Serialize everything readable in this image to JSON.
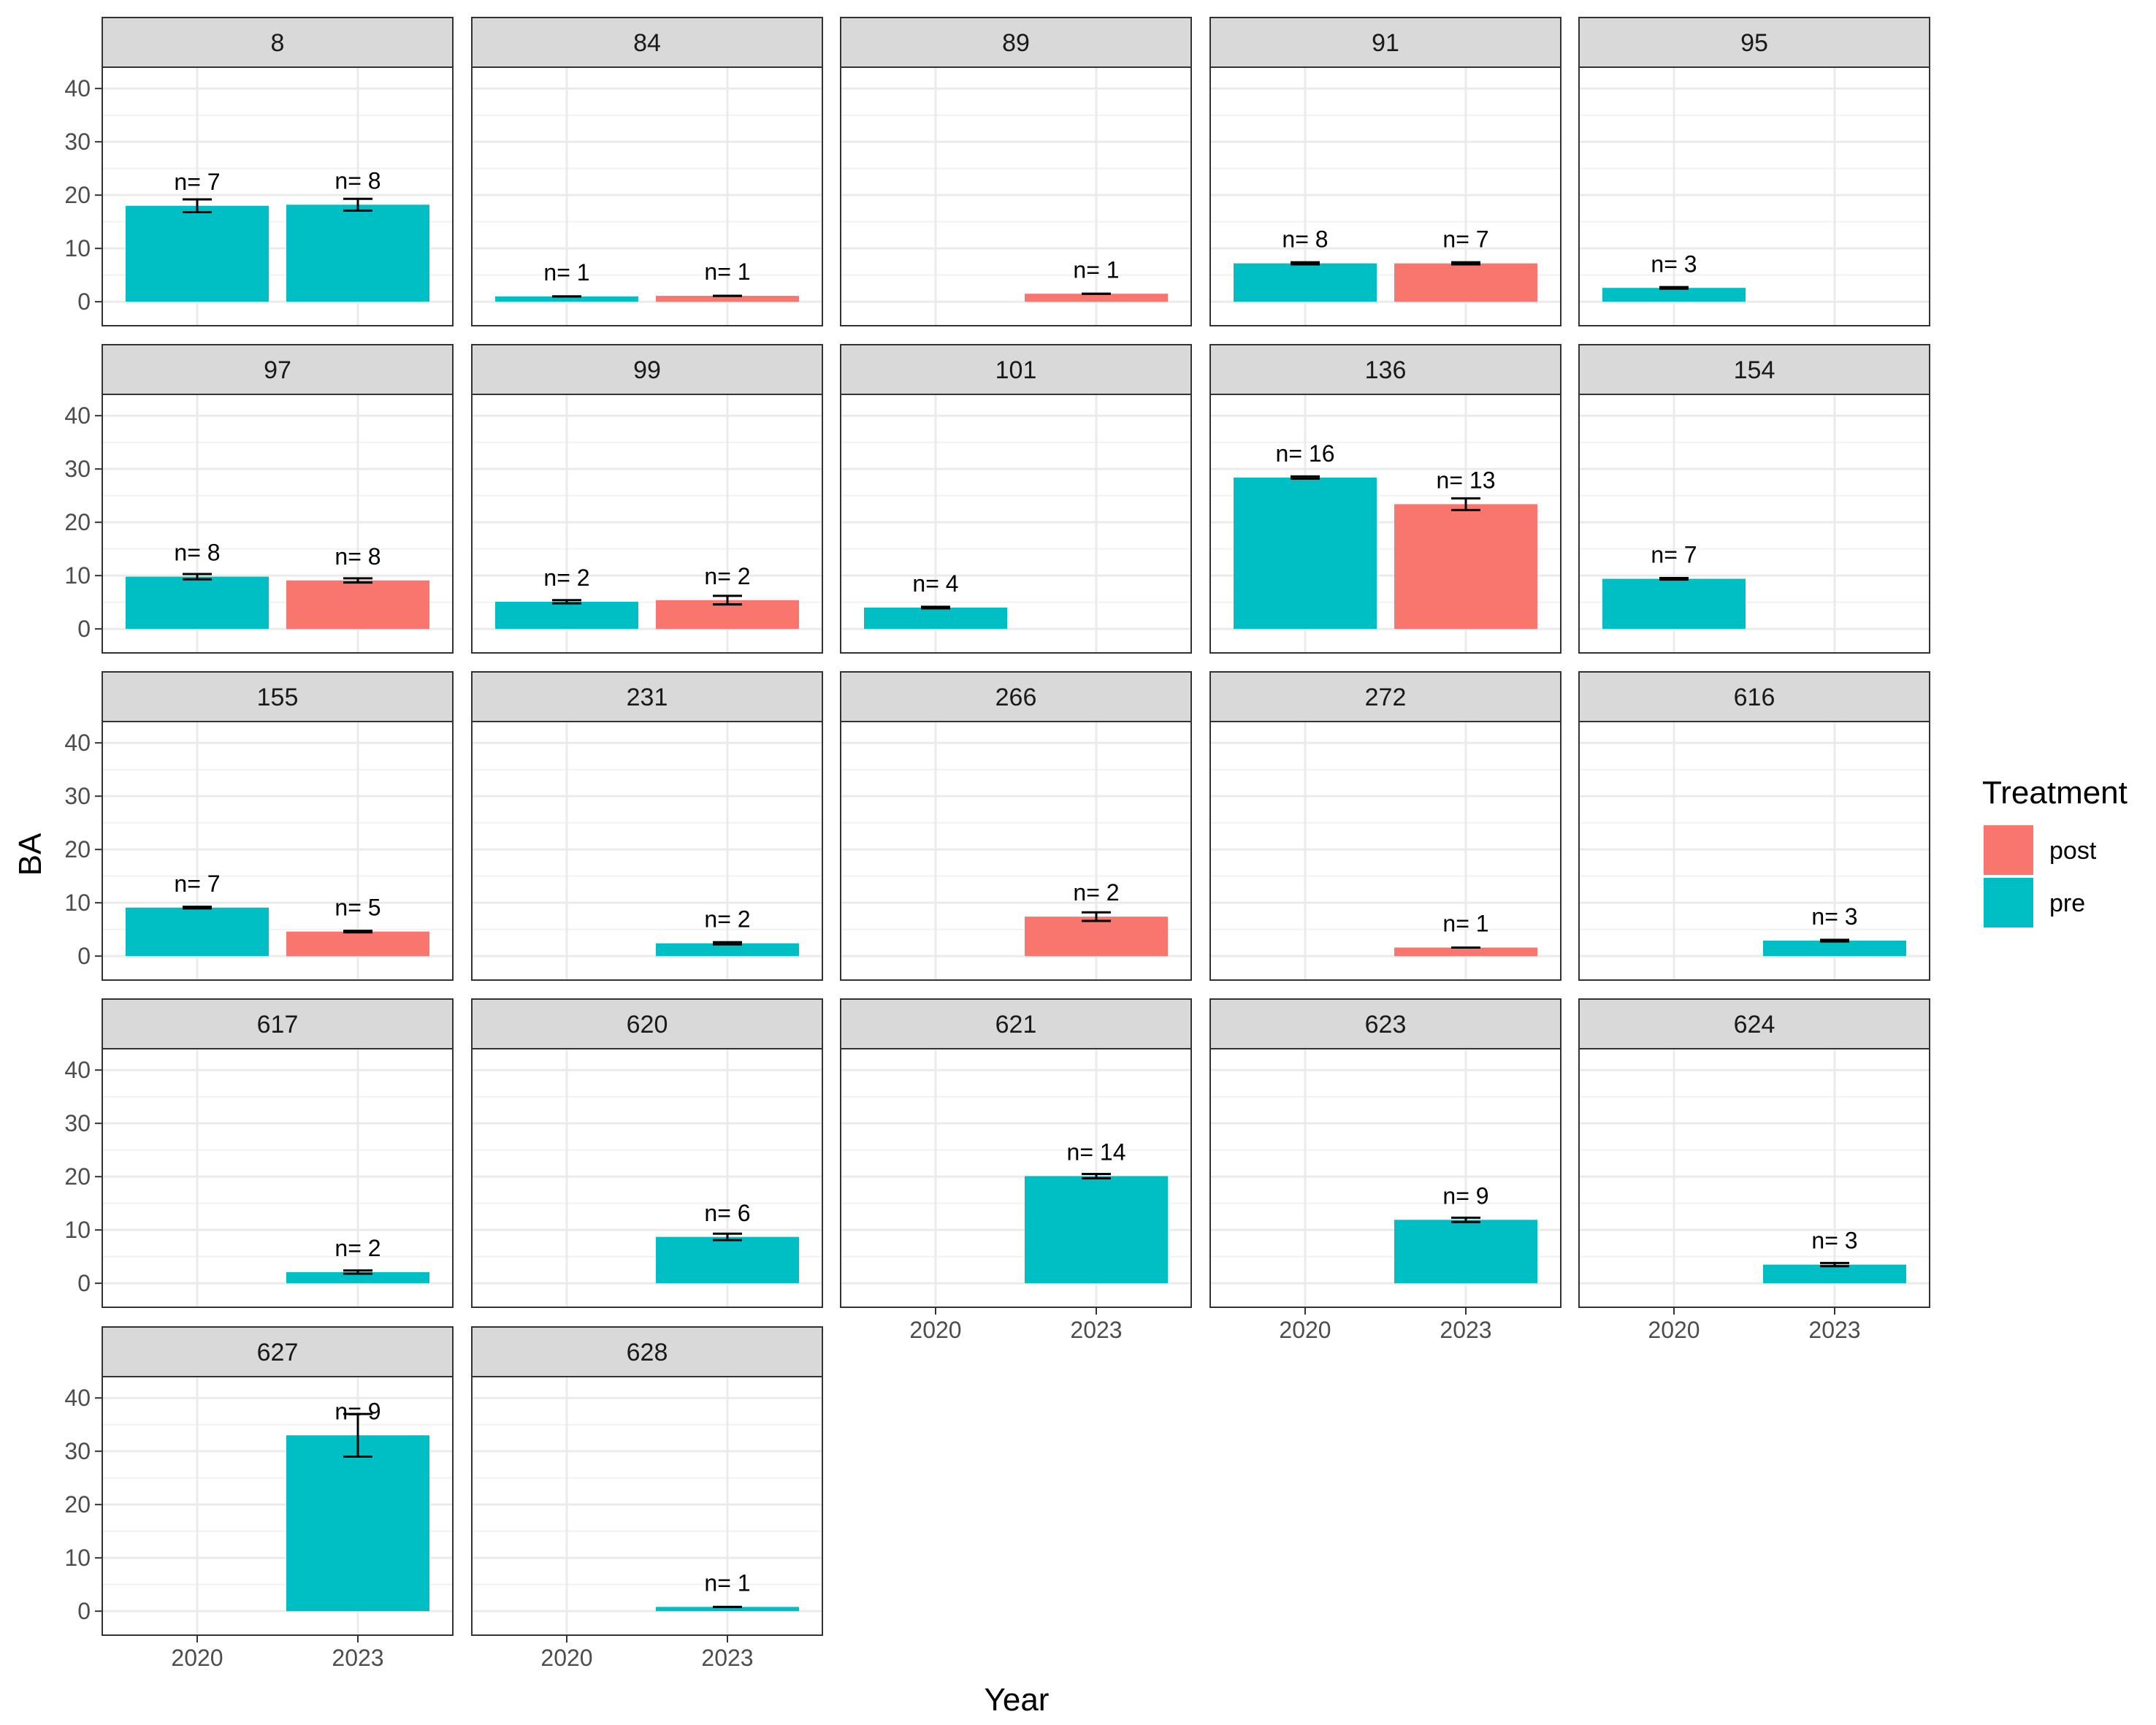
{
  "chart_data": {
    "type": "bar",
    "xlabel": "Year",
    "ylabel": "BA",
    "x_categories": [
      "2020",
      "2023"
    ],
    "yticks": [
      0,
      10,
      20,
      30,
      40
    ],
    "ylim": [
      -4.5,
      44
    ],
    "grid": true,
    "legend": {
      "title": "Treatment",
      "placement": "right",
      "items": [
        {
          "label": "post",
          "color": "#F8766D"
        },
        {
          "label": "pre",
          "color": "#00BFC4"
        }
      ]
    },
    "panels": [
      {
        "title": "8",
        "bars": [
          {
            "year": "2020",
            "treatment": "pre",
            "value": 18,
            "err": 1.2,
            "label": "n= 7"
          },
          {
            "year": "2023",
            "treatment": "pre",
            "value": 18.2,
            "err": 1.1,
            "label": "n= 8"
          }
        ]
      },
      {
        "title": "84",
        "bars": [
          {
            "year": "2020",
            "treatment": "pre",
            "value": 1,
            "err": 0,
            "label": "n= 1"
          },
          {
            "year": "2023",
            "treatment": "post",
            "value": 1.1,
            "err": 0,
            "label": "n= 1"
          }
        ]
      },
      {
        "title": "89",
        "bars": [
          {
            "year": "2023",
            "treatment": "post",
            "value": 1.5,
            "err": 0,
            "label": "n= 1"
          }
        ]
      },
      {
        "title": "91",
        "bars": [
          {
            "year": "2020",
            "treatment": "pre",
            "value": 7.2,
            "err": 0.2,
            "label": "n= 8"
          },
          {
            "year": "2023",
            "treatment": "post",
            "value": 7.2,
            "err": 0.2,
            "label": "n= 7"
          }
        ]
      },
      {
        "title": "95",
        "bars": [
          {
            "year": "2020",
            "treatment": "pre",
            "value": 2.6,
            "err": 0.15,
            "label": "n= 3"
          }
        ]
      },
      {
        "title": "97",
        "bars": [
          {
            "year": "2020",
            "treatment": "pre",
            "value": 9.8,
            "err": 0.5,
            "label": "n= 8"
          },
          {
            "year": "2023",
            "treatment": "post",
            "value": 9.1,
            "err": 0.4,
            "label": "n= 8"
          }
        ]
      },
      {
        "title": "99",
        "bars": [
          {
            "year": "2020",
            "treatment": "pre",
            "value": 5.1,
            "err": 0.3,
            "label": "n= 2"
          },
          {
            "year": "2023",
            "treatment": "post",
            "value": 5.4,
            "err": 0.8,
            "label": "n= 2"
          }
        ]
      },
      {
        "title": "101",
        "bars": [
          {
            "year": "2020",
            "treatment": "pre",
            "value": 4,
            "err": 0.15,
            "label": "n= 4"
          }
        ]
      },
      {
        "title": "136",
        "bars": [
          {
            "year": "2020",
            "treatment": "pre",
            "value": 28.4,
            "err": 0.2,
            "label": "n= 16"
          },
          {
            "year": "2023",
            "treatment": "post",
            "value": 23.4,
            "err": 1.1,
            "label": "n= 13"
          }
        ]
      },
      {
        "title": "154",
        "bars": [
          {
            "year": "2020",
            "treatment": "pre",
            "value": 9.4,
            "err": 0.15,
            "label": "n= 7"
          }
        ]
      },
      {
        "title": "155",
        "bars": [
          {
            "year": "2020",
            "treatment": "pre",
            "value": 9.1,
            "err": 0.15,
            "label": "n= 7"
          },
          {
            "year": "2023",
            "treatment": "post",
            "value": 4.6,
            "err": 0.15,
            "label": "n= 5"
          }
        ]
      },
      {
        "title": "231",
        "bars": [
          {
            "year": "2023",
            "treatment": "pre",
            "value": 2.4,
            "err": 0.2,
            "label": "n= 2"
          }
        ]
      },
      {
        "title": "266",
        "bars": [
          {
            "year": "2023",
            "treatment": "post",
            "value": 7.4,
            "err": 0.8,
            "label": "n= 2"
          }
        ]
      },
      {
        "title": "272",
        "bars": [
          {
            "year": "2023",
            "treatment": "post",
            "value": 1.6,
            "err": 0,
            "label": "n= 1"
          }
        ]
      },
      {
        "title": "616",
        "bars": [
          {
            "year": "2023",
            "treatment": "pre",
            "value": 2.9,
            "err": 0.15,
            "label": "n= 3"
          }
        ]
      },
      {
        "title": "617",
        "bars": [
          {
            "year": "2023",
            "treatment": "pre",
            "value": 2.1,
            "err": 0.3,
            "label": "n= 2"
          }
        ]
      },
      {
        "title": "620",
        "bars": [
          {
            "year": "2023",
            "treatment": "pre",
            "value": 8.7,
            "err": 0.6,
            "label": "n= 6"
          }
        ]
      },
      {
        "title": "621",
        "bars": [
          {
            "year": "2023",
            "treatment": "pre",
            "value": 20.1,
            "err": 0.4,
            "label": "n= 14"
          }
        ]
      },
      {
        "title": "623",
        "bars": [
          {
            "year": "2023",
            "treatment": "pre",
            "value": 11.9,
            "err": 0.4,
            "label": "n= 9"
          }
        ]
      },
      {
        "title": "624",
        "bars": [
          {
            "year": "2023",
            "treatment": "pre",
            "value": 3.5,
            "err": 0.3,
            "label": "n= 3"
          }
        ]
      },
      {
        "title": "627",
        "bars": [
          {
            "year": "2023",
            "treatment": "pre",
            "value": 33,
            "err": 4,
            "label": "n= 9"
          }
        ]
      },
      {
        "title": "628",
        "bars": [
          {
            "year": "2023",
            "treatment": "pre",
            "value": 0.8,
            "err": 0,
            "label": "n= 1"
          }
        ]
      }
    ]
  }
}
